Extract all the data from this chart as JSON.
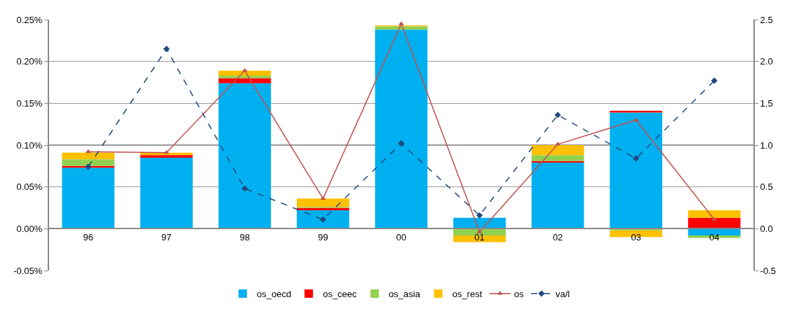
{
  "chart_data": {
    "type": "bar",
    "stacked": true,
    "categories": [
      "96",
      "97",
      "98",
      "99",
      "00",
      "01",
      "02",
      "03",
      "04"
    ],
    "series": [
      {
        "name": "os_oecd",
        "color": "#00b0f0",
        "values": [
          0.073,
          0.085,
          0.174,
          0.022,
          0.238,
          0.013,
          0.079,
          0.139,
          -0.008
        ]
      },
      {
        "name": "os_ceec",
        "color": "#ff0000",
        "values": [
          0.002,
          0.003,
          0.006,
          0.003,
          0.0,
          0.0,
          0.002,
          0.002,
          0.013
        ]
      },
      {
        "name": "os_asia",
        "color": "#92d050",
        "values": [
          0.008,
          0.0,
          0.003,
          0.001,
          0.004,
          -0.008,
          0.007,
          -0.002,
          -0.003
        ]
      },
      {
        "name": "os_rest",
        "color": "#ffc000",
        "values": [
          0.008,
          0.003,
          0.006,
          0.01,
          0.001,
          -0.008,
          0.012,
          -0.008,
          0.009
        ]
      },
      {
        "name": "os",
        "type": "line",
        "color": "#c0504d",
        "marker": "triangle",
        "line_style": "solid",
        "values": [
          0.092,
          0.091,
          0.189,
          0.036,
          0.245,
          -0.004,
          0.101,
          0.13,
          0.011
        ]
      },
      {
        "name": "va/l",
        "type": "line",
        "axis": "y2",
        "color": "#1f497d",
        "marker": "diamond",
        "line_style": "dashed",
        "values": [
          0.74,
          2.15,
          0.48,
          0.11,
          1.02,
          0.16,
          1.36,
          0.84,
          1.77
        ]
      }
    ],
    "ylim": [
      -0.05,
      0.25
    ],
    "yticks": [
      {
        "value": -0.05,
        "label": "-0.05%"
      },
      {
        "value": 0,
        "label": "0.00%"
      },
      {
        "value": 0.05,
        "label": "0.05%"
      },
      {
        "value": 0.1,
        "label": "0.10%"
      },
      {
        "value": 0.15,
        "label": "0.15%"
      },
      {
        "value": 0.2,
        "label": "0.20%"
      },
      {
        "value": 0.25,
        "label": "0.25%"
      }
    ],
    "y2lim": [
      -0.5,
      2.5
    ],
    "y2ticks": [
      {
        "value": -0.5,
        "label": "-0.5"
      },
      {
        "value": 0,
        "label": "0.0"
      },
      {
        "value": 0.5,
        "label": "0.5"
      },
      {
        "value": 1,
        "label": "1.0"
      },
      {
        "value": 1.5,
        "label": "1.5"
      },
      {
        "value": 2,
        "label": "2.0"
      },
      {
        "value": 2.5,
        "label": "2.5"
      }
    ],
    "grid": "y",
    "legend": "bottom"
  }
}
